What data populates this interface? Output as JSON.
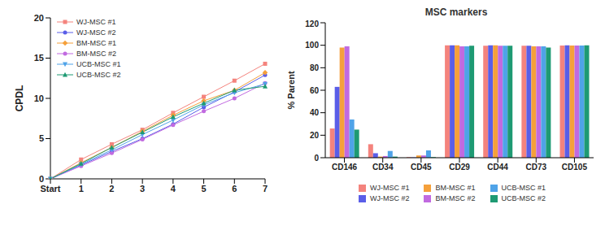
{
  "chart_data": [
    {
      "type": "line",
      "y_label": "CPDL",
      "categories": [
        "Start",
        "1",
        "2",
        "3",
        "4",
        "5",
        "6",
        "7"
      ],
      "ylim": [
        0,
        20
      ],
      "yticks": [
        0,
        5,
        10,
        15,
        20
      ],
      "grid": false,
      "legend": "upper left",
      "series": [
        {
          "name": "WJ-MSC #1",
          "color": "#f4837d",
          "marker": "square",
          "values": [
            0,
            2.4,
            4.3,
            6.1,
            8.2,
            10.2,
            12.2,
            14.3
          ]
        },
        {
          "name": "WJ-MSC #2",
          "color": "#5a5ee8",
          "marker": "circle",
          "values": [
            0,
            1.7,
            3.4,
            5.0,
            6.8,
            8.9,
            10.8,
            12.9
          ]
        },
        {
          "name": "BM-MSC #1",
          "color": "#f5a03b",
          "marker": "diamond",
          "values": [
            0,
            2.0,
            3.9,
            5.9,
            7.9,
            9.7,
            11.0,
            13.2
          ]
        },
        {
          "name": "BM-MSC #2",
          "color": "#c16ae0",
          "marker": "circle",
          "values": [
            0,
            1.6,
            3.2,
            4.9,
            6.7,
            8.4,
            10.0,
            11.9
          ]
        },
        {
          "name": "UCB-MSC #1",
          "color": "#4fa3e8",
          "marker": "triangle-down",
          "values": [
            0,
            1.8,
            3.6,
            5.5,
            7.3,
            9.2,
            10.7,
            11.8
          ]
        },
        {
          "name": "UCB-MSC #2",
          "color": "#1e9a73",
          "marker": "triangle",
          "values": [
            0,
            1.9,
            3.9,
            5.8,
            7.7,
            9.4,
            11.0,
            11.5
          ]
        }
      ]
    },
    {
      "type": "bar",
      "title": "MSC markers",
      "y_label": "% Parent",
      "categories": [
        "CD146",
        "CD34",
        "CD45",
        "CD29",
        "CD44",
        "CD73",
        "CD105"
      ],
      "ylim": [
        0,
        120
      ],
      "yticks": [
        0,
        20,
        40,
        60,
        80,
        100,
        120
      ],
      "grid": false,
      "legend": "bottom",
      "series": [
        {
          "name": "WJ-MSC #1",
          "color": "#f4837d",
          "values": [
            26,
            12,
            0.5,
            100,
            99.5,
            99.5,
            99.8
          ]
        },
        {
          "name": "WJ-MSC #2",
          "color": "#5a5ee8",
          "values": [
            63,
            4,
            0.3,
            100,
            100,
            99.5,
            100
          ]
        },
        {
          "name": "BM-MSC #1",
          "color": "#f5a03b",
          "values": [
            98,
            1,
            2,
            100,
            100,
            99,
            99.8
          ]
        },
        {
          "name": "BM-MSC #2",
          "color": "#c16ae0",
          "values": [
            99,
            1.5,
            2,
            99,
            99.5,
            99,
            99.8
          ]
        },
        {
          "name": "UCB-MSC #1",
          "color": "#4fa3e8",
          "values": [
            34,
            6,
            6.5,
            99,
            99.5,
            99,
            99.8
          ]
        },
        {
          "name": "UCB-MSC #2",
          "color": "#1e9a73",
          "values": [
            25,
            1,
            0.5,
            99.5,
            99.5,
            98,
            100
          ]
        }
      ]
    }
  ]
}
